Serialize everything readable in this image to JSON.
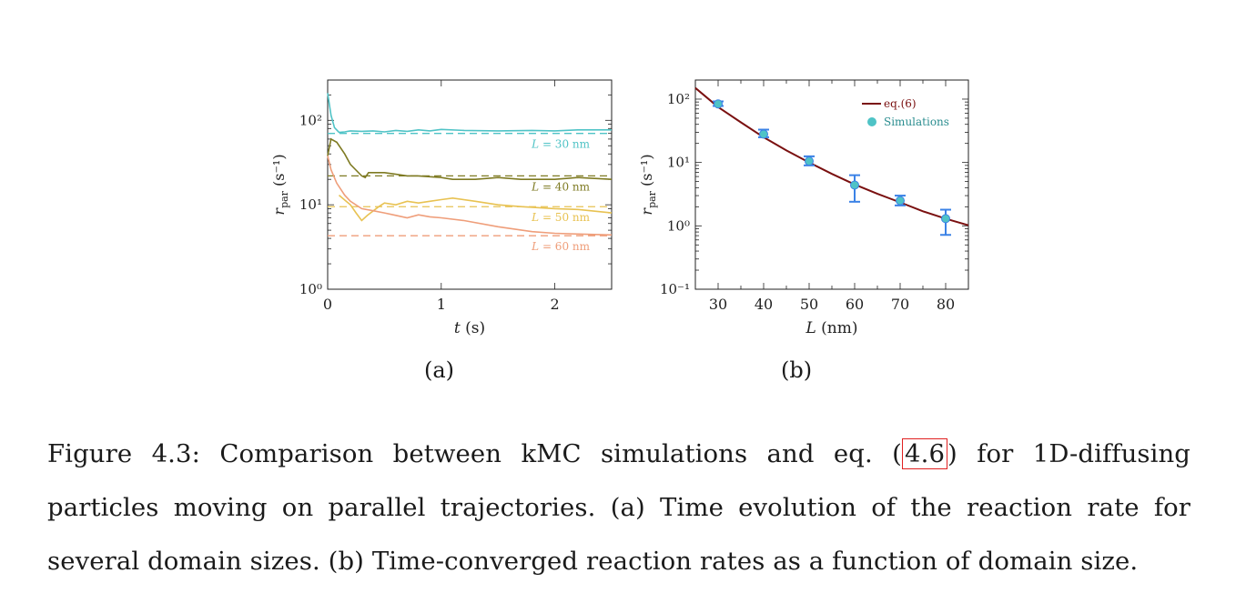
{
  "chart_data": [
    {
      "id": "a",
      "type": "line",
      "xlabel": "t (s)",
      "ylabel": "r_par (s⁻¹)",
      "xlim": [
        0,
        2.5
      ],
      "ylim": [
        1,
        300
      ],
      "yscale": "log",
      "xticks": [
        0,
        1,
        2
      ],
      "yticks": [
        {
          "value": 1,
          "label": "10⁰"
        },
        {
          "value": 10,
          "label": "10¹"
        },
        {
          "value": 100,
          "label": "10²"
        }
      ],
      "series": [
        {
          "name": "L = 30 nm",
          "color": "#4fc3c6",
          "reference": 70,
          "x": [
            0,
            0.03,
            0.06,
            0.1,
            0.15,
            0.2,
            0.3,
            0.4,
            0.5,
            0.6,
            0.7,
            0.8,
            0.9,
            1.0,
            1.2,
            1.5,
            1.8,
            2.0,
            2.2,
            2.5
          ],
          "y": [
            210,
            115,
            82,
            72,
            73,
            75,
            74,
            75,
            73,
            76,
            74,
            77,
            75,
            78,
            76,
            75,
            76,
            75,
            77,
            77
          ]
        },
        {
          "name": "L = 40 nm",
          "color": "#7e7a22",
          "reference": 22,
          "x": [
            0,
            0.03,
            0.08,
            0.15,
            0.2,
            0.3,
            0.33,
            0.36,
            0.5,
            0.6,
            0.7,
            0.8,
            1.0,
            1.1,
            1.3,
            1.5,
            1.7,
            2.0,
            2.2,
            2.5
          ],
          "y": [
            38,
            60,
            55,
            40,
            30,
            22,
            21,
            24,
            24,
            23,
            22,
            22,
            21,
            20,
            20,
            21,
            20,
            20,
            21,
            20
          ]
        },
        {
          "name": "L = 50 nm",
          "color": "#e8c252",
          "reference": 9.5,
          "x": [
            0.1,
            0.2,
            0.25,
            0.3,
            0.35,
            0.45,
            0.5,
            0.6,
            0.7,
            0.8,
            0.9,
            1.0,
            1.1,
            1.3,
            1.5,
            1.7,
            2.0,
            2.2,
            2.5
          ],
          "y": [
            13,
            10,
            8,
            6.5,
            7.5,
            9.5,
            10.5,
            10,
            11,
            10.5,
            11,
            11.5,
            12,
            11,
            10,
            9.5,
            9,
            8.8,
            8
          ]
        },
        {
          "name": "L = 60 nm",
          "color": "#ef9e7a",
          "reference": 4.3,
          "x": [
            0,
            0.03,
            0.08,
            0.15,
            0.2,
            0.3,
            0.4,
            0.5,
            0.6,
            0.7,
            0.8,
            0.9,
            1.0,
            1.2,
            1.5,
            1.8,
            2.0,
            2.2,
            2.5
          ],
          "y": [
            38,
            26,
            18,
            13,
            11,
            9,
            8.5,
            8,
            7.5,
            7,
            7.6,
            7.2,
            7,
            6.5,
            5.5,
            4.8,
            4.6,
            4.5,
            4.4
          ]
        }
      ]
    },
    {
      "id": "b",
      "type": "scatter",
      "xlabel": "L (nm)",
      "ylabel": "r_par (s⁻¹)",
      "xlim": [
        25,
        85
      ],
      "ylim": [
        0.1,
        200
      ],
      "yscale": "log",
      "xticks": [
        30,
        40,
        50,
        60,
        70,
        80
      ],
      "yticks": [
        {
          "value": 0.1,
          "label": "10⁻¹"
        },
        {
          "value": 1,
          "label": "10⁰"
        },
        {
          "value": 10,
          "label": "10¹"
        },
        {
          "value": 100,
          "label": "10²"
        }
      ],
      "model": {
        "name": "eq.(6)",
        "color": "#7a1010",
        "x": [
          25,
          30,
          35,
          40,
          45,
          50,
          55,
          60,
          65,
          70,
          75,
          80,
          85
        ],
        "y": [
          150,
          75,
          43,
          25,
          15.5,
          10,
          6.6,
          4.5,
          3.2,
          2.35,
          1.7,
          1.3,
          1.02
        ]
      },
      "simulations": {
        "name": "Simulations",
        "color": "#4fc3c6",
        "error_color": "#3b82e6",
        "x": [
          30,
          40,
          50,
          60,
          70,
          80
        ],
        "y": [
          84,
          28,
          10.5,
          4.4,
          2.5,
          1.3
        ],
        "err_low": [
          78,
          25,
          9,
          2.4,
          2.1,
          0.72
        ],
        "err_high": [
          92,
          33,
          12.5,
          6.3,
          3.0,
          1.8
        ]
      }
    }
  ],
  "subfigure_labels": [
    "(a)",
    "(b)"
  ],
  "caption": {
    "before_ref": "Figure 4.3: Comparison between kMC simulations and eq. (",
    "ref": "4.6",
    "after_ref": ") for 1D-diffusing particles moving on parallel trajectories. (a) Time evolution of the reaction rate for several domain sizes. (b) Time-converged reaction rates as a function of domain size."
  }
}
